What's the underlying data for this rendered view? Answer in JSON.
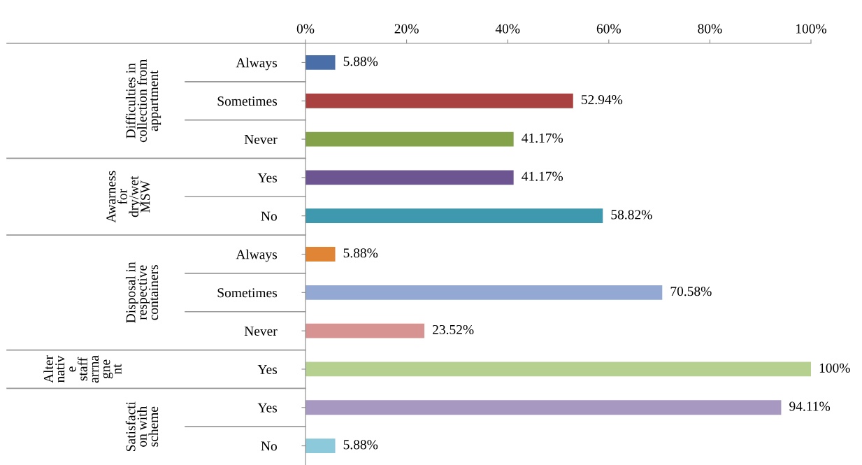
{
  "chart_data": {
    "type": "bar",
    "orientation": "horizontal",
    "categories": [
      "Always",
      "Sometimes",
      "Never",
      "Yes",
      "No",
      "Always",
      "Sometimes",
      "Never",
      "Yes",
      "Yes",
      "No"
    ],
    "values": [
      5.88,
      52.94,
      41.17,
      41.17,
      58.82,
      5.88,
      70.58,
      23.52,
      100,
      94.11,
      5.88
    ],
    "colors": [
      "#4a6fa8",
      "#a8413f",
      "#84a24a",
      "#6d5592",
      "#3e98ae",
      "#e08436",
      "#93a9d4",
      "#d69391",
      "#b6d08f",
      "#a698c0",
      "#8ccadb"
    ],
    "value_labels": [
      "5.88%",
      "52.94%",
      "41.17%",
      "41.17%",
      "58.82%",
      "5.88%",
      "70.58%",
      "23.52%",
      "100%",
      "94.11%",
      "5.88%"
    ],
    "xlim": [
      0,
      100
    ],
    "xticks": [
      {
        "value": 0,
        "label": "0%"
      },
      {
        "value": 20,
        "label": "20%"
      },
      {
        "value": 40,
        "label": "40%"
      },
      {
        "value": 60,
        "label": "60%"
      },
      {
        "value": 80,
        "label": "80%"
      },
      {
        "value": 100,
        "label": "100%"
      }
    ],
    "annotations": [
      "Difficulties in\ncollection from\nappartment",
      "Awarness\nfor\ndry/wet\nMSW",
      "Disposal in\nrespective\ncontainers",
      "Alter\nnativ\ne\nstaff\narrna\ngne\nnt",
      "Satisfacti\non with\nscheme"
    ],
    "grid": false,
    "legend": false
  }
}
